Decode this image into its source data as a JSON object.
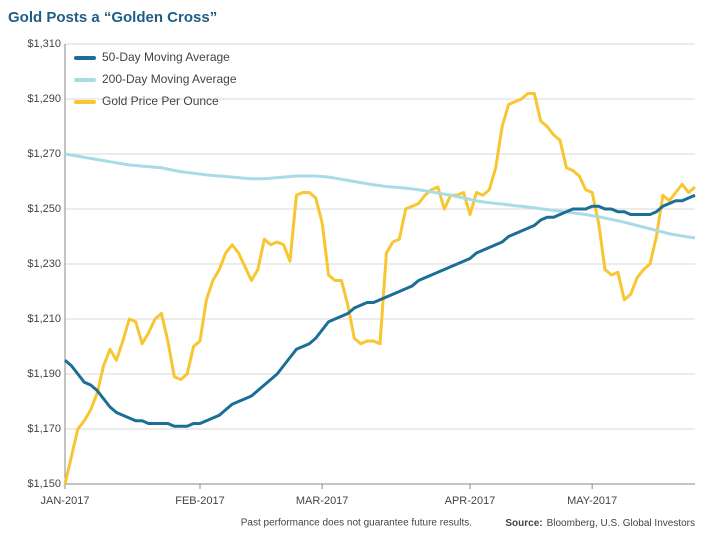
{
  "chart_data": {
    "type": "line",
    "title": "Gold Posts a “Golden Cross”",
    "footnote": "Past performance does not guarantee future results.",
    "source_label": "Source:",
    "source": "Bloomberg, U.S. Global Investors",
    "categories": [
      "JAN-2017",
      null,
      null,
      null,
      null,
      null,
      null,
      null,
      null,
      null,
      null,
      null,
      null,
      null,
      null,
      null,
      null,
      null,
      null,
      null,
      null,
      "FEB-2017",
      null,
      null,
      null,
      null,
      null,
      null,
      null,
      null,
      null,
      null,
      null,
      null,
      null,
      null,
      null,
      null,
      null,
      null,
      "MAR-2017",
      null,
      null,
      null,
      null,
      null,
      null,
      null,
      null,
      null,
      null,
      null,
      null,
      null,
      null,
      null,
      null,
      null,
      null,
      null,
      null,
      null,
      null,
      "APR-2017",
      null,
      null,
      null,
      null,
      null,
      null,
      null,
      null,
      null,
      null,
      null,
      null,
      null,
      null,
      null,
      null,
      null,
      null,
      "MAY-2017",
      null,
      null,
      null,
      null,
      null,
      null,
      null,
      null,
      null,
      null,
      null,
      null,
      null,
      null,
      null,
      null
    ],
    "series": [
      {
        "name": "50-Day Moving Average",
        "color": "#1a6f96",
        "values": [
          1195,
          1193,
          1190,
          1187,
          1186,
          1184,
          1181,
          1178,
          1176,
          1175,
          1174,
          1173,
          1173,
          1172,
          1172,
          1172,
          1172,
          1171,
          1171,
          1171,
          1172,
          1172,
          1173,
          1174,
          1175,
          1177,
          1179,
          1180,
          1181,
          1182,
          1184,
          1186,
          1188,
          1190,
          1193,
          1196,
          1199,
          1200,
          1201,
          1203,
          1206,
          1209,
          1210,
          1211,
          1212,
          1214,
          1215,
          1216,
          1216,
          1217,
          1218,
          1219,
          1220,
          1221,
          1222,
          1224,
          1225,
          1226,
          1227,
          1228,
          1229,
          1230,
          1231,
          1232,
          1234,
          1235,
          1236,
          1237,
          1238,
          1240,
          1241,
          1242,
          1243,
          1244,
          1246,
          1247,
          1247,
          1248,
          1249,
          1250,
          1250,
          1250,
          1251,
          1251,
          1250,
          1250,
          1249,
          1249,
          1248,
          1248,
          1248,
          1248,
          1249,
          1251,
          1252,
          1253,
          1253,
          1254,
          1255
        ]
      },
      {
        "name": "200-Day Moving Average",
        "color": "#a8dbe6",
        "values": [
          1270,
          1269.6,
          1269.2,
          1268.8,
          1268.4,
          1268,
          1267.6,
          1267.2,
          1266.8,
          1266.4,
          1266,
          1265.8,
          1265.6,
          1265.4,
          1265.2,
          1265,
          1264.5,
          1264,
          1263.6,
          1263.3,
          1263,
          1262.7,
          1262.4,
          1262.2,
          1262,
          1261.8,
          1261.6,
          1261.4,
          1261.2,
          1261,
          1261,
          1261,
          1261.2,
          1261.4,
          1261.6,
          1261.8,
          1262,
          1262,
          1262,
          1262,
          1261.8,
          1261.6,
          1261.2,
          1260.8,
          1260.4,
          1260,
          1259.6,
          1259.2,
          1258.8,
          1258.5,
          1258.2,
          1258,
          1257.8,
          1257.6,
          1257.3,
          1257,
          1256.6,
          1256.2,
          1255.8,
          1255.4,
          1255,
          1254.5,
          1254,
          1253.5,
          1253,
          1252.6,
          1252.3,
          1252,
          1251.8,
          1251.5,
          1251.2,
          1251,
          1250.7,
          1250.4,
          1250.1,
          1249.8,
          1249.5,
          1249.2,
          1248.9,
          1248.6,
          1248.3,
          1248,
          1247.6,
          1247.2,
          1246.7,
          1246.2,
          1245.7,
          1245.2,
          1244.6,
          1244,
          1243.4,
          1242.8,
          1242.2,
          1241.6,
          1241,
          1240.6,
          1240.2,
          1239.8,
          1239.5
        ]
      },
      {
        "name": "Gold Price Per Ounce",
        "color": "#f7c631",
        "values": [
          1150,
          1160,
          1170,
          1173,
          1177,
          1183,
          1193,
          1199,
          1195,
          1202,
          1210,
          1209,
          1201,
          1205,
          1210,
          1212,
          1202,
          1189,
          1188,
          1190,
          1200,
          1202,
          1217,
          1224,
          1228,
          1234,
          1237,
          1234,
          1229,
          1224,
          1228,
          1239,
          1237,
          1238,
          1237,
          1231,
          1255,
          1256,
          1256,
          1254,
          1245,
          1226,
          1224,
          1224,
          1215,
          1203,
          1201,
          1202,
          1202,
          1201,
          1234,
          1238,
          1239,
          1250,
          1251,
          1252,
          1255,
          1257,
          1258,
          1250,
          1255,
          1255,
          1256,
          1248,
          1256,
          1255,
          1257,
          1265,
          1280,
          1288,
          1289,
          1290,
          1292,
          1292,
          1282,
          1280,
          1277,
          1275,
          1265,
          1264,
          1262,
          1257,
          1256,
          1245,
          1228,
          1226,
          1227,
          1217,
          1219,
          1225,
          1228,
          1230,
          1240,
          1255,
          1253,
          1256,
          1259,
          1256,
          1258
        ]
      }
    ],
    "ylim": [
      1150,
      1310
    ],
    "yticks": [
      {
        "value": 1150,
        "label": "$1,150"
      },
      {
        "value": 1170,
        "label": "$1,170"
      },
      {
        "value": 1190,
        "label": "$1,190"
      },
      {
        "value": 1210,
        "label": "$1,210"
      },
      {
        "value": 1230,
        "label": "$1,230"
      },
      {
        "value": 1250,
        "label": "$1,250"
      },
      {
        "value": 1270,
        "label": "$1,270"
      },
      {
        "value": 1290,
        "label": "$1,290"
      },
      {
        "value": 1310,
        "label": "$1,310"
      }
    ],
    "grid": true,
    "legend": "top-left"
  }
}
